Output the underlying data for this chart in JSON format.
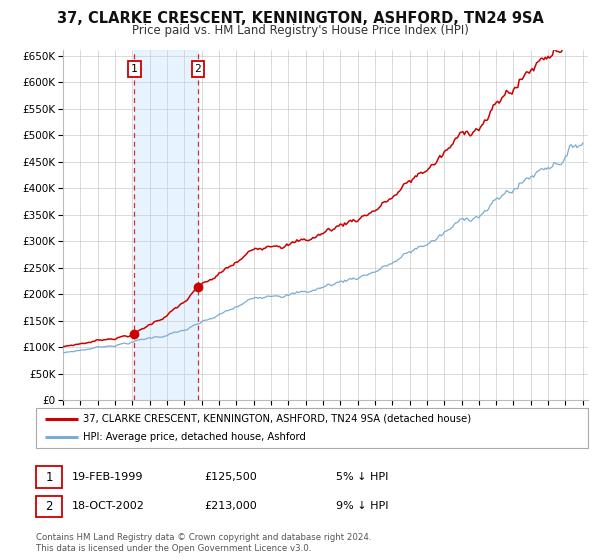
{
  "title": "37, CLARKE CRESCENT, KENNINGTON, ASHFORD, TN24 9SA",
  "subtitle": "Price paid vs. HM Land Registry's House Price Index (HPI)",
  "ylim": [
    0,
    660000
  ],
  "xlim_start": 1995.0,
  "xlim_end": 2025.3,
  "yticks": [
    0,
    50000,
    100000,
    150000,
    200000,
    250000,
    300000,
    350000,
    400000,
    450000,
    500000,
    550000,
    600000,
    650000
  ],
  "ytick_labels": [
    "£0",
    "£50K",
    "£100K",
    "£150K",
    "£200K",
    "£250K",
    "£300K",
    "£350K",
    "£400K",
    "£450K",
    "£500K",
    "£550K",
    "£600K",
    "£650K"
  ],
  "xticks": [
    1995,
    1996,
    1997,
    1998,
    1999,
    2000,
    2001,
    2002,
    2003,
    2004,
    2005,
    2006,
    2007,
    2008,
    2009,
    2010,
    2011,
    2012,
    2013,
    2014,
    2015,
    2016,
    2017,
    2018,
    2019,
    2020,
    2021,
    2022,
    2023,
    2024,
    2025
  ],
  "sale1_x": 1999.12,
  "sale1_y": 125500,
  "sale1_label": "1",
  "sale1_date": "19-FEB-1999",
  "sale1_price": "£125,500",
  "sale1_hpi": "5% ↓ HPI",
  "sale2_x": 2002.79,
  "sale2_y": 213000,
  "sale2_label": "2",
  "sale2_date": "18-OCT-2002",
  "sale2_price": "£213,000",
  "sale2_hpi": "9% ↓ HPI",
  "red_line_color": "#cc0000",
  "blue_line_color": "#7aadd4",
  "shade_color": "#ddeeff",
  "dashed_color": "#cc0000",
  "grid_color": "#cccccc",
  "background_color": "#ffffff",
  "legend1_label": "37, CLARKE CRESCENT, KENNINGTON, ASHFORD, TN24 9SA (detached house)",
  "legend2_label": "HPI: Average price, detached house, Ashford",
  "footer1": "Contains HM Land Registry data © Crown copyright and database right 2024.",
  "footer2": "This data is licensed under the Open Government Licence v3.0."
}
